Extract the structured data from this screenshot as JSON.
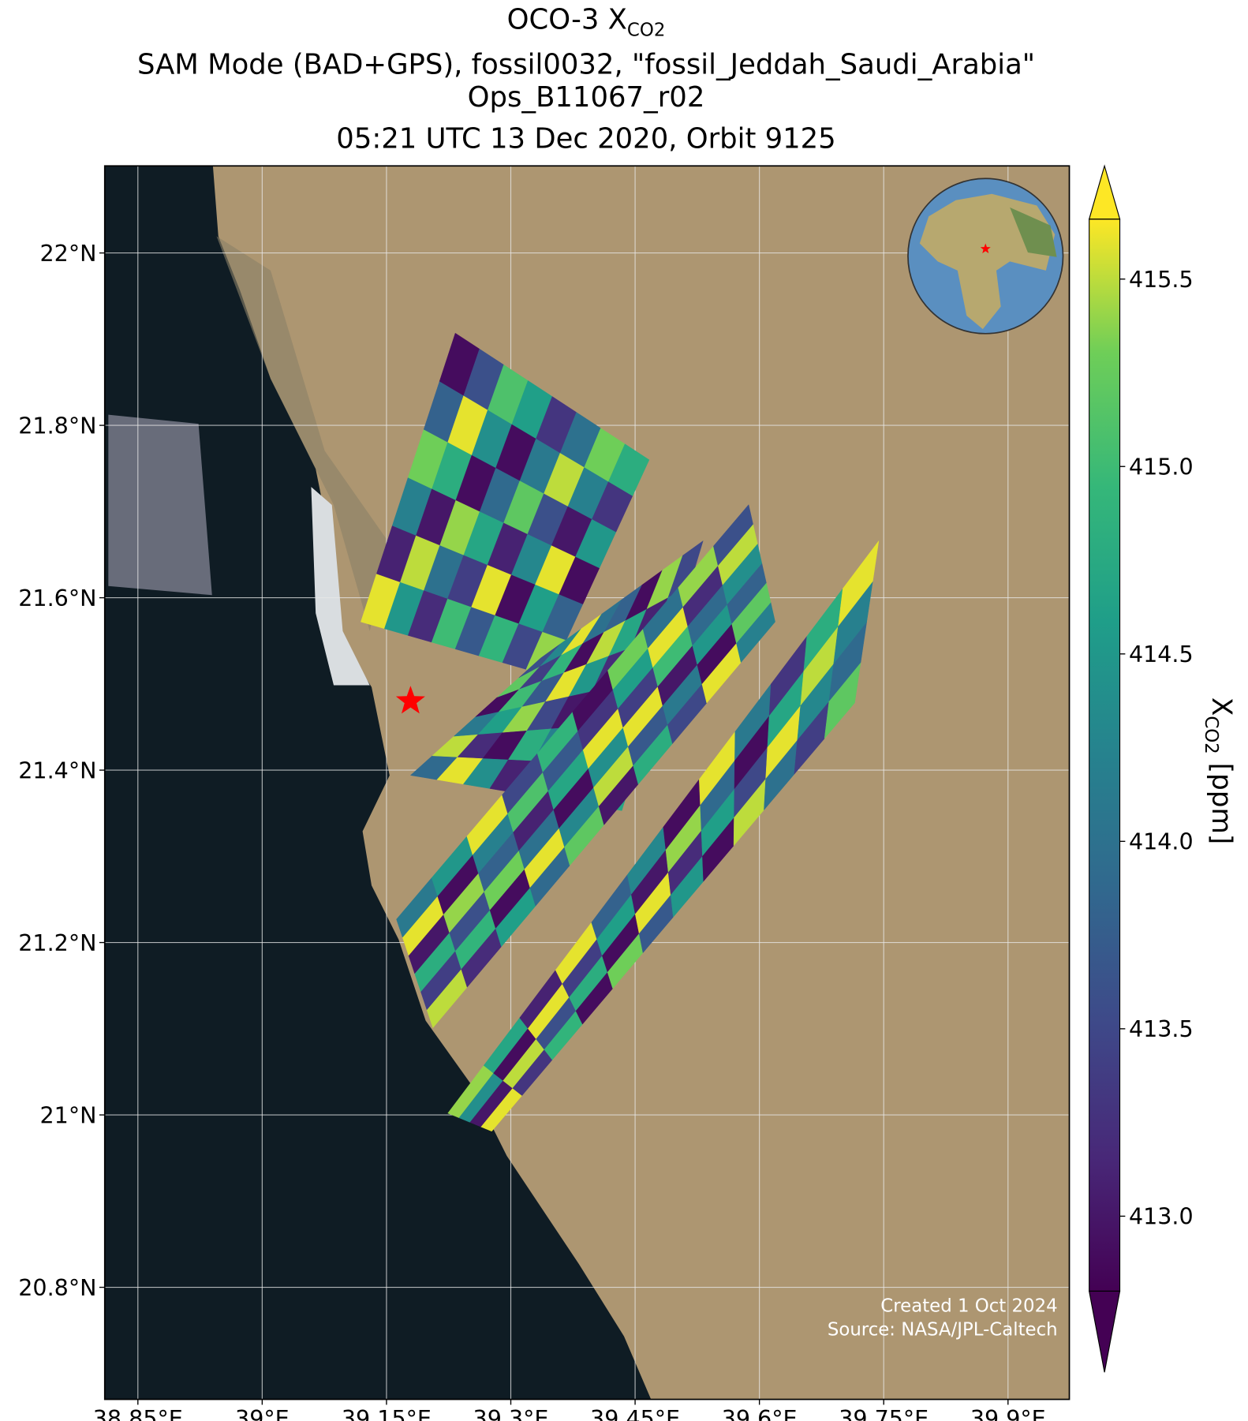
{
  "chart_data": {
    "type": "swath-map",
    "title": {
      "lead": "OCO-3 X",
      "sub": "CO2"
    },
    "subtitle_lines": [
      "SAM Mode (BAD+GPS), fossil0032, \"fossil_Jeddah_Saudi_Arabia\"",
      "Ops_B11067_r02",
      "05:21 UTC 13 Dec 2020, Orbit 9125"
    ],
    "xlim": [
      38.81,
      39.974
    ],
    "ylim": [
      20.67,
      22.101
    ],
    "xticks": [
      {
        "value": 38.85,
        "label": "38.85°E"
      },
      {
        "value": 39,
        "label": "39°E"
      },
      {
        "value": 39.15,
        "label": "39.15°E"
      },
      {
        "value": 39.3,
        "label": "39.3°E"
      },
      {
        "value": 39.45,
        "label": "39.45°E"
      },
      {
        "value": 39.6,
        "label": "39.6°E"
      },
      {
        "value": 39.75,
        "label": "39.75°E"
      },
      {
        "value": 39.9,
        "label": "39.9°E"
      }
    ],
    "yticks": [
      {
        "value": 20.8,
        "label": "20.8°N"
      },
      {
        "value": 21,
        "label": "21°N"
      },
      {
        "value": 21.2,
        "label": "21.2°N"
      },
      {
        "value": 21.4,
        "label": "21.4°N"
      },
      {
        "value": 21.6,
        "label": "21.6°N"
      },
      {
        "value": 21.8,
        "label": "21.8°N"
      },
      {
        "value": 22,
        "label": "22°N"
      }
    ],
    "grid": true,
    "colorbar": {
      "label_lead": "X",
      "label_sub": "CO2",
      "label_tail": " [ppm]",
      "lim": [
        412.8,
        415.66
      ],
      "ticks": [
        {
          "value": 413.0,
          "label": "413.0"
        },
        413.5,
        {
          "value": 414.0,
          "label": "414.0"
        },
        414.5,
        {
          "value": 415.0,
          "label": "415.0"
        },
        415.5
      ],
      "colormap": "viridis"
    },
    "site": {
      "lon": 39.179,
      "lat": 21.48,
      "color": "#ff0000"
    },
    "swaths": [
      {
        "corners": [
          [
            39.119,
            21.572
          ],
          [
            39.233,
            21.907
          ],
          [
            39.467,
            21.76
          ],
          [
            39.347,
            21.509
          ]
        ],
        "values": [
          [
            415.6,
            413.1,
            414.2,
            415.3,
            413.8,
            412.9
          ],
          [
            414.5,
            415.5,
            413.0,
            414.8,
            415.6,
            413.6
          ],
          [
            413.2,
            414.0,
            415.4,
            412.9,
            414.4,
            415.1
          ],
          [
            415.0,
            413.4,
            414.7,
            413.9,
            412.9,
            414.6
          ],
          [
            413.7,
            415.6,
            413.1,
            415.2,
            414.1,
            413.3
          ],
          [
            414.9,
            412.9,
            414.3,
            413.6,
            415.5,
            414.0
          ],
          [
            413.5,
            414.6,
            415.6,
            413.0,
            414.2,
            415.3
          ],
          [
            415.4,
            413.8,
            412.9,
            414.5,
            413.3,
            414.8
          ]
        ]
      },
      {
        "corners": [
          [
            39.179,
            21.394
          ],
          [
            39.336,
            21.53
          ],
          [
            39.532,
            21.666
          ],
          [
            39.434,
            21.353
          ]
        ],
        "values": [
          [
            413.9,
            415.5,
            414.1,
            412.9,
            415.2,
            413.6
          ],
          [
            415.6,
            413.2,
            414.6,
            415.0,
            413.4,
            414.3
          ],
          [
            414.4,
            412.9,
            415.4,
            413.7,
            414.9,
            415.6
          ],
          [
            413.1,
            414.8,
            413.5,
            415.6,
            412.9,
            414.0
          ],
          [
            415.3,
            414.2,
            413.0,
            414.5,
            415.5,
            413.8
          ],
          [
            414.0,
            415.6,
            413.9,
            413.2,
            414.7,
            412.9
          ],
          [
            412.9,
            413.6,
            415.2,
            414.6,
            413.1,
            415.4
          ],
          [
            414.7,
            415.1,
            413.3,
            415.6,
            414.3,
            413.5
          ]
        ]
      },
      {
        "corners": [
          [
            39.206,
            21.101
          ],
          [
            39.162,
            21.227
          ],
          [
            39.587,
            21.708
          ],
          [
            39.619,
            21.572
          ]
        ],
        "values": [
          [
            415.5,
            413.4,
            414.8,
            413.0,
            415.6,
            414.1
          ],
          [
            413.2,
            414.9,
            413.6,
            415.4,
            412.9,
            414.5
          ],
          [
            414.6,
            412.9,
            415.3,
            413.8,
            414.2,
            415.6
          ],
          [
            413.9,
            415.6,
            414.0,
            413.1,
            415.1,
            413.5
          ],
          [
            415.2,
            414.3,
            412.9,
            414.7,
            413.7,
            414.9
          ],
          [
            413.0,
            415.5,
            414.4,
            415.6,
            413.3,
            412.9
          ],
          [
            414.8,
            413.7,
            415.6,
            413.4,
            414.6,
            415.3
          ],
          [
            413.5,
            414.1,
            413.0,
            415.0,
            415.6,
            414.0
          ],
          [
            415.6,
            412.9,
            414.5,
            413.9,
            413.2,
            415.4
          ],
          [
            414.2,
            415.2,
            413.8,
            414.4,
            415.5,
            413.6
          ]
        ]
      },
      {
        "corners": [
          [
            39.277,
            20.981
          ],
          [
            39.224,
            21.002
          ],
          [
            39.744,
            21.666
          ],
          [
            39.715,
            21.478
          ]
        ],
        "values": [
          [
            415.6,
            413.0,
            414.4,
            415.4
          ],
          [
            413.3,
            415.5,
            412.9,
            414.7
          ],
          [
            414.9,
            413.6,
            415.6,
            413.1
          ],
          [
            412.9,
            414.8,
            413.4,
            415.6
          ],
          [
            415.3,
            412.9,
            414.6,
            413.8
          ],
          [
            413.7,
            415.6,
            413.0,
            414.3
          ],
          [
            414.5,
            413.2,
            415.4,
            412.9
          ],
          [
            412.9,
            414.6,
            413.9,
            415.6
          ],
          [
            415.5,
            413.5,
            412.9,
            414.1
          ],
          [
            414.0,
            415.6,
            414.7,
            413.3
          ],
          [
            413.4,
            414.3,
            415.5,
            414.8
          ],
          [
            415.2,
            413.9,
            414.2,
            415.6
          ]
        ]
      }
    ],
    "footer": [
      "Created 1 Oct 2024",
      "Source: NASA/JPL-Caltech"
    ]
  }
}
